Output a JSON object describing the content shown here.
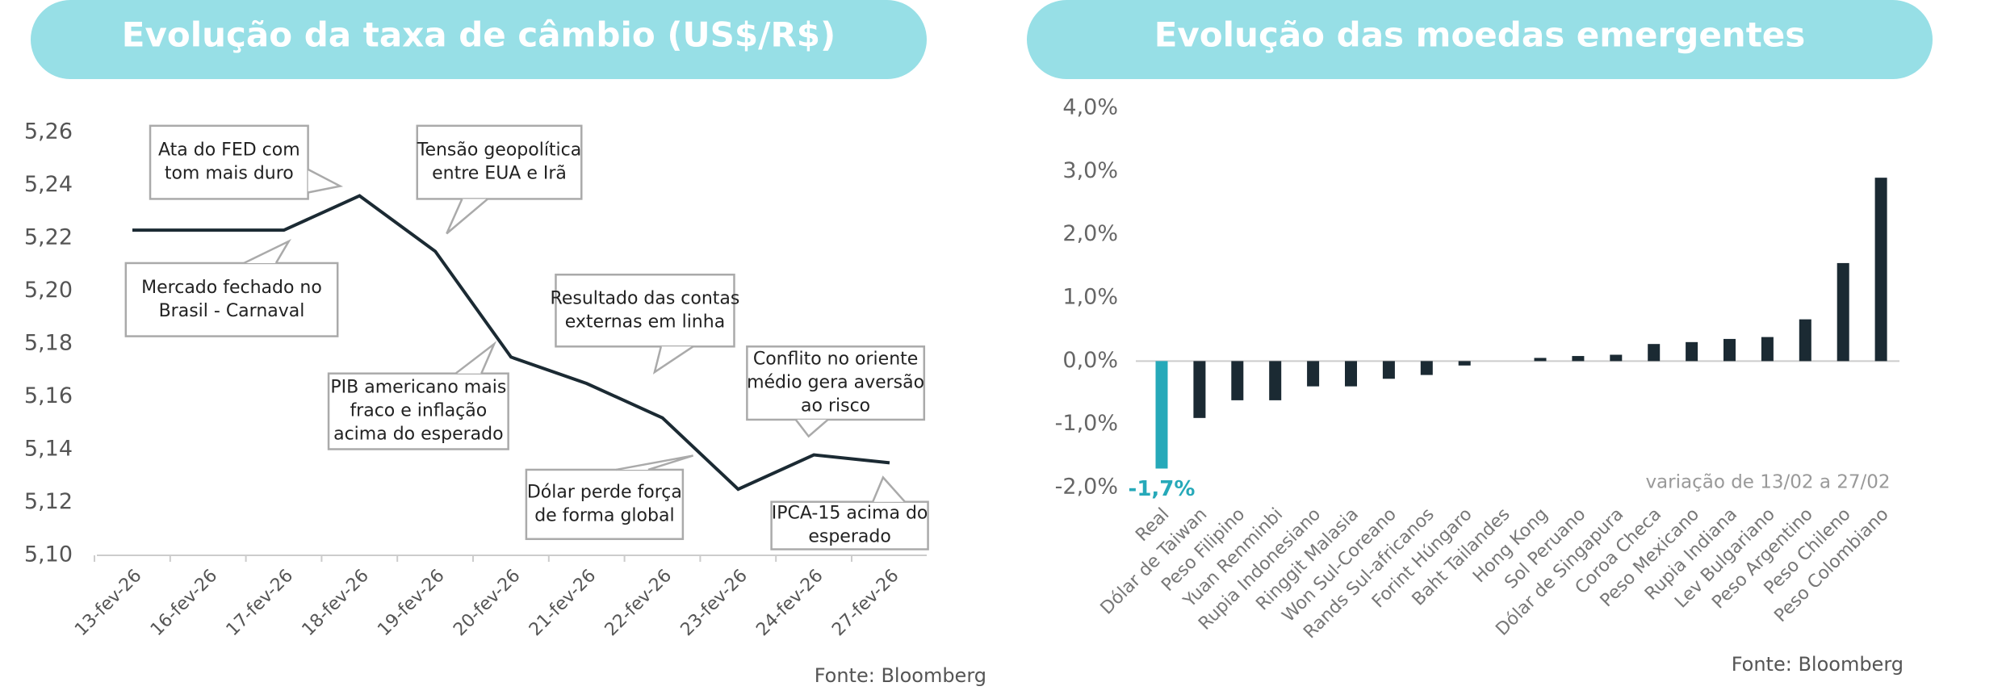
{
  "chart_data": [
    {
      "type": "line",
      "title": "Evolução da taxa de câmbio (US$/R$)",
      "categories": [
        "13-fev-26",
        "16-fev-26",
        "17-fev-26",
        "18-fev-26",
        "19-fev-26",
        "20-fev-26",
        "21-fev-26",
        "22-fev-26",
        "23-fev-26",
        "24-fev-26",
        "27-fev-26"
      ],
      "values": [
        5.223,
        5.223,
        5.223,
        5.236,
        5.215,
        5.175,
        5.165,
        5.152,
        5.125,
        5.138,
        5.135
      ],
      "color": "#1b2a33",
      "ylim": [
        5.1,
        5.26
      ],
      "yticks": [
        {
          "value": 5.1,
          "label": "5,10"
        },
        {
          "value": 5.12,
          "label": "5,12"
        },
        {
          "value": 5.14,
          "label": "5,14"
        },
        {
          "value": 5.16,
          "label": "5,16"
        },
        {
          "value": 5.18,
          "label": "5,18"
        },
        {
          "value": 5.2,
          "label": "5,20"
        },
        {
          "value": 5.22,
          "label": "5,22"
        },
        {
          "value": 5.24,
          "label": "5,24"
        },
        {
          "value": 5.26,
          "label": "5,26"
        }
      ],
      "annotations": [
        {
          "lines": [
            "Ata do FED com",
            "tom mais duro"
          ]
        },
        {
          "lines": [
            "Tensão geopolítica",
            "entre EUA e Irã"
          ]
        },
        {
          "lines": [
            "Mercado fechado no",
            "Brasil - Carnaval"
          ]
        },
        {
          "lines": [
            "Resultado das contas",
            "externas em linha"
          ]
        },
        {
          "lines": [
            "PIB americano mais",
            "fraco e inflação",
            "acima do esperado"
          ]
        },
        {
          "lines": [
            "Conflito no oriente",
            "médio gera aversão",
            "ao risco"
          ]
        },
        {
          "lines": [
            "Dólar perde força",
            "de forma global"
          ]
        },
        {
          "lines": [
            "IPCA-15 acima do",
            "esperado"
          ]
        }
      ],
      "source": "Fonte: Bloomberg"
    },
    {
      "type": "bar",
      "title": "Evolução das moedas emergentes",
      "categories": [
        "Real",
        "Dólar de Taiwan",
        "Peso Filipino",
        "Yuan Renminbi",
        "Rupia Indonesiano",
        "Ringgit Malasia",
        "Won Sul-Coreano",
        "Rands Sul-africanos",
        "Forint Húngaro",
        "Baht Tailandes",
        "Hong Kong",
        "Sol Peruano",
        "Dólar de Singapura",
        "Coroa Checa",
        "Peso Mexicano",
        "Rupia Indiana",
        "Lev Bulgariano",
        "Peso Argentino",
        "Peso Chileno",
        "Peso Colombiano"
      ],
      "values": [
        -1.7,
        -0.9,
        -0.62,
        -0.62,
        -0.4,
        -0.4,
        -0.28,
        -0.22,
        -0.07,
        0.0,
        0.05,
        0.08,
        0.1,
        0.27,
        0.3,
        0.35,
        0.38,
        0.66,
        1.55,
        2.9
      ],
      "value_labels": [
        "-1,7%",
        null,
        null,
        null,
        null,
        null,
        null,
        null,
        null,
        null,
        null,
        null,
        null,
        null,
        null,
        null,
        null,
        null,
        null,
        null
      ],
      "colors": [
        "#26a9b9",
        "#1b2a33",
        "#1b2a33",
        "#1b2a33",
        "#1b2a33",
        "#1b2a33",
        "#1b2a33",
        "#1b2a33",
        "#1b2a33",
        "#1b2a33",
        "#1b2a33",
        "#1b2a33",
        "#1b2a33",
        "#1b2a33",
        "#1b2a33",
        "#1b2a33",
        "#1b2a33",
        "#1b2a33",
        "#1b2a33",
        "#1b2a33"
      ],
      "ylim": [
        -2,
        4
      ],
      "yticks": [
        {
          "value": -2,
          "label": "-2,0%"
        },
        {
          "value": -1,
          "label": "-1,0%"
        },
        {
          "value": 0,
          "label": "0,0%"
        },
        {
          "value": 1,
          "label": "1,0%"
        },
        {
          "value": 2,
          "label": "2,0%"
        },
        {
          "value": 3,
          "label": "3,0%"
        },
        {
          "value": 4,
          "label": "4,0%"
        }
      ],
      "note": "variação de 13/02 a 27/02",
      "source": "Fonte: Bloomberg"
    }
  ]
}
